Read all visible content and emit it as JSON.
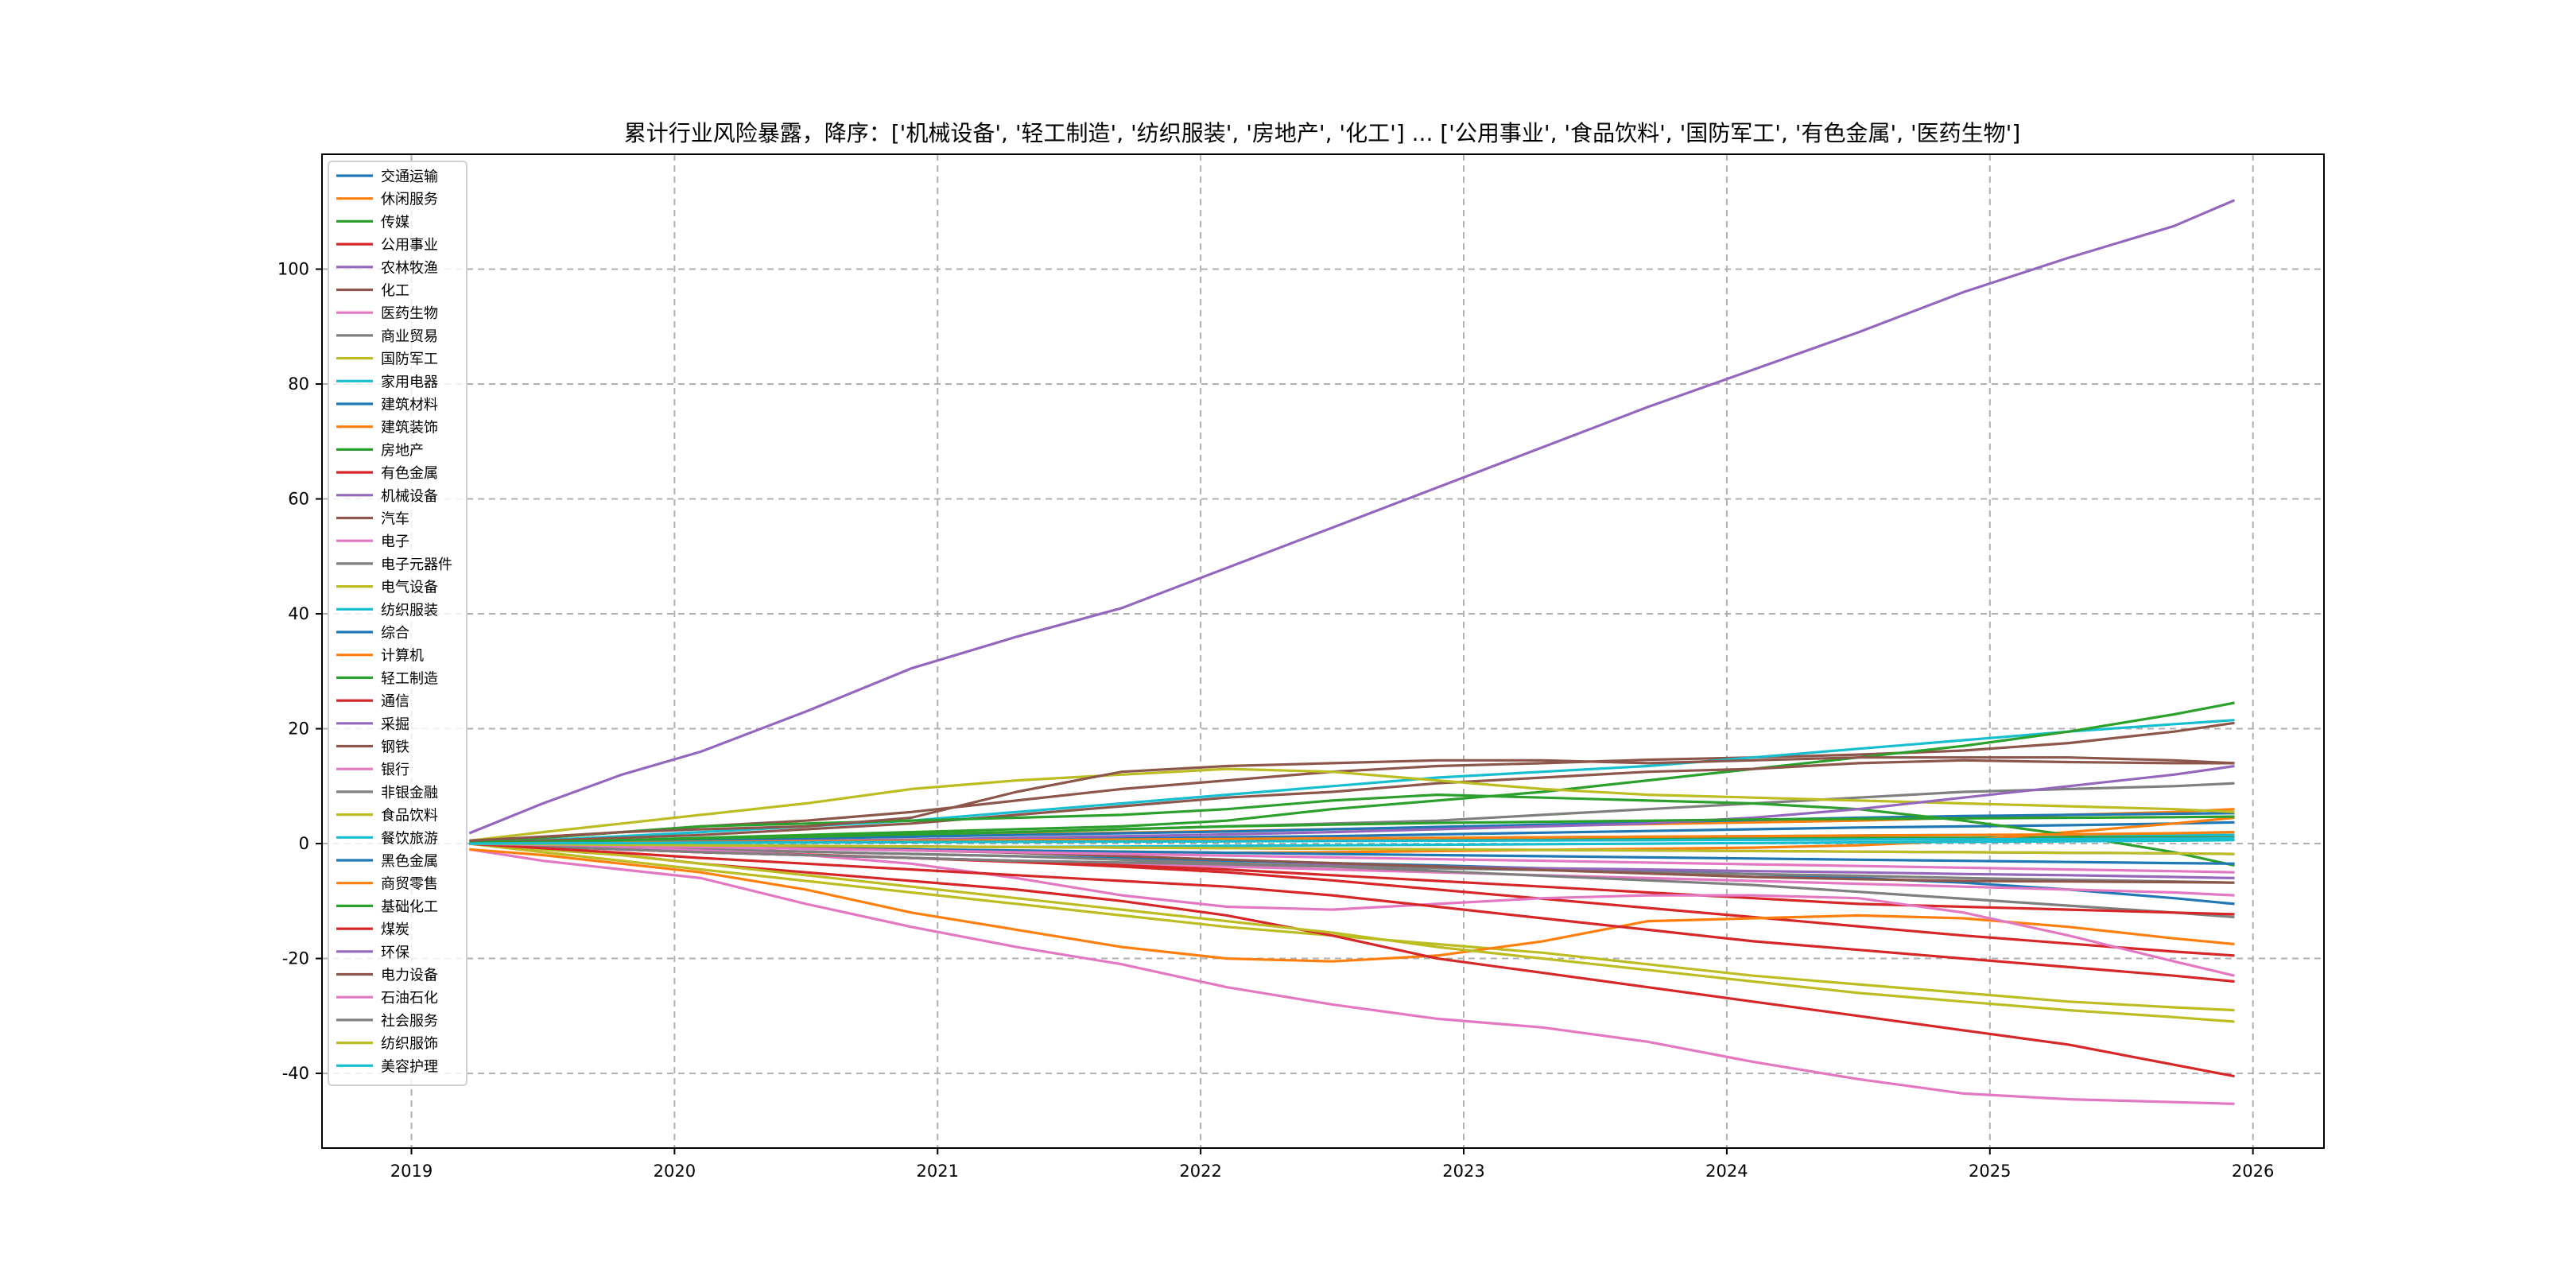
{
  "chart_data": {
    "type": "line",
    "title": "累计行业风险暴露，降序：['机械设备', '轻工制造', '纺织服装', '房地产', '化工'] ... ['公用事业', '食品饮料', '国防军工', '有色金属', '医药生物']",
    "xlabel": "",
    "ylabel": "",
    "x_ticks": [
      "2019",
      "2020",
      "2021",
      "2022",
      "2023",
      "2024",
      "2025",
      "2026"
    ],
    "y_ticks": [
      -40,
      -20,
      0,
      20,
      40,
      60,
      80,
      100
    ],
    "xlim": [
      2018.66,
      2026.27
    ],
    "ylim": [
      -53,
      120
    ],
    "grid": true,
    "legend_position": "upper-left",
    "x": [
      2019.22,
      2019.5,
      2019.8,
      2020.1,
      2020.5,
      2020.9,
      2021.3,
      2021.7,
      2022.1,
      2022.5,
      2022.9,
      2023.3,
      2023.7,
      2024.1,
      2024.5,
      2024.9,
      2025.3,
      2025.7,
      2025.93
    ],
    "series": [
      {
        "name": "交通运输",
        "color": "#1f77b4",
        "values": [
          0,
          -0.3,
          -0.6,
          -1,
          -1.4,
          -1.8,
          -2.2,
          -2.6,
          -3,
          -3.4,
          -3.8,
          -4.3,
          -4.8,
          -5.3,
          -6,
          -6.8,
          -8,
          -9.5,
          -10.5
        ]
      },
      {
        "name": "休闲服务",
        "color": "#ff7f0e",
        "values": [
          0,
          0.2,
          0.4,
          0.7,
          1,
          1.3,
          1.6,
          1.9,
          2.2,
          2.5,
          2.8,
          3.1,
          3.4,
          3.7,
          4,
          4.5,
          5,
          5.5,
          6
        ]
      },
      {
        "name": "传媒",
        "color": "#2ca02c",
        "values": [
          0,
          0.1,
          0.2,
          0.3,
          0.4,
          0.5,
          0.5,
          0.6,
          0.6,
          0.7,
          0.7,
          0.8,
          0.8,
          0.9,
          1,
          1,
          1.1,
          1.2,
          1.3
        ]
      },
      {
        "name": "公用事业",
        "color": "#d62728",
        "values": [
          0,
          -0.4,
          -0.8,
          -1.3,
          -1.9,
          -2.5,
          -3.2,
          -4,
          -5,
          -6.4,
          -8,
          -9.6,
          -11.2,
          -12.8,
          -14.4,
          -16,
          -17.4,
          -18.8,
          -19.5
        ]
      },
      {
        "name": "农林牧渔",
        "color": "#9467bd",
        "values": [
          0,
          -0.5,
          -1,
          -1.5,
          -2,
          -2.5,
          -3,
          -3.3,
          -3.5,
          -3.8,
          -4,
          -4.3,
          -4.5,
          -4.8,
          -5,
          -5.3,
          -5.5,
          -5.8,
          -6
        ]
      },
      {
        "name": "化工",
        "color": "#8c564b",
        "values": [
          0,
          1,
          2,
          3,
          4,
          5.5,
          7.5,
          9.5,
          11,
          12.5,
          13.5,
          14,
          14.6,
          15,
          15.5,
          16.2,
          17.5,
          19.5,
          21
        ]
      },
      {
        "name": "医药生物",
        "color": "#e377c2",
        "values": [
          -1,
          -3,
          -4.5,
          -6,
          -10.5,
          -14.5,
          -18,
          -21,
          -25,
          -28,
          -30.5,
          -32,
          -34.5,
          -38,
          -41,
          -43.5,
          -44.5,
          -45,
          -45.3
        ]
      },
      {
        "name": "商业贸易",
        "color": "#7f7f7f",
        "values": [
          0,
          0.2,
          0.5,
          0.8,
          1.2,
          1.6,
          2,
          2.5,
          3,
          3.5,
          4,
          5,
          6,
          7,
          8,
          9,
          9.5,
          10,
          10.5
        ]
      },
      {
        "name": "国防军工",
        "color": "#bcbd22",
        "values": [
          0,
          -1.5,
          -3,
          -4.5,
          -6.5,
          -8.5,
          -10.5,
          -12.5,
          -14.5,
          -16,
          -17.5,
          -19,
          -21,
          -23,
          -24.5,
          -26,
          -27.5,
          -28.5,
          -29
        ]
      },
      {
        "name": "家用电器",
        "color": "#17becf",
        "values": [
          0,
          0.6,
          1.3,
          2,
          3,
          4,
          5.5,
          7,
          8.5,
          10,
          11.5,
          12.5,
          13.5,
          15,
          16.5,
          18,
          19.5,
          20.8,
          21.5
        ]
      },
      {
        "name": "建筑材料",
        "color": "#1f77b4",
        "values": [
          0,
          0.2,
          0.4,
          0.6,
          0.9,
          1.2,
          1.5,
          1.8,
          2.1,
          2.5,
          2.9,
          3.3,
          3.7,
          4.1,
          4.5,
          4.8,
          5,
          5.2,
          5.3
        ]
      },
      {
        "name": "建筑装饰",
        "color": "#ff7f0e",
        "values": [
          -1,
          -2,
          -3.5,
          -5,
          -8,
          -12,
          -15,
          -18,
          -20,
          -20.5,
          -19.5,
          -17,
          -13.5,
          -13,
          -12.5,
          -13,
          -14.5,
          -16.5,
          -17.5
        ]
      },
      {
        "name": "房地产",
        "color": "#2ca02c",
        "values": [
          0,
          0.3,
          0.6,
          1,
          1.5,
          2,
          2.5,
          3,
          4,
          6,
          7.5,
          9,
          11,
          13,
          15,
          17,
          19.5,
          22.5,
          24.5
        ]
      },
      {
        "name": "有色金属",
        "color": "#d62728",
        "values": [
          0,
          -1,
          -2,
          -3.5,
          -5,
          -6.5,
          -8,
          -10,
          -12.5,
          -16,
          -20,
          -22.5,
          -25,
          -27.5,
          -30,
          -32.5,
          -35,
          -38.5,
          -40.5
        ]
      },
      {
        "name": "机械设备",
        "color": "#9467bd",
        "values": [
          1.8,
          7,
          12,
          16,
          23,
          30.5,
          36,
          41,
          48,
          55,
          62,
          69,
          76,
          82.5,
          89,
          96,
          102,
          107.5,
          112
        ]
      },
      {
        "name": "汽车",
        "color": "#8c564b",
        "values": [
          0,
          0.5,
          1,
          1.5,
          2.5,
          3.5,
          5,
          6.5,
          8,
          9,
          10.5,
          11.5,
          12.5,
          13,
          14,
          14.5,
          14.2,
          14,
          14
        ]
      },
      {
        "name": "电子",
        "color": "#e377c2",
        "values": [
          0,
          -0.5,
          -1,
          -1.5,
          -2,
          -2.5,
          -3,
          -3.5,
          -4,
          -4.5,
          -5,
          -5.5,
          -6,
          -6.5,
          -7,
          -7.5,
          -8,
          -8.5,
          -9
        ]
      },
      {
        "name": "电子元器件",
        "color": "#7f7f7f",
        "values": [
          0,
          -0.3,
          -0.6,
          -1,
          -1.4,
          -1.8,
          -2.2,
          -2.8,
          -3.4,
          -4,
          -4.8,
          -5.6,
          -6.4,
          -7.2,
          -8.4,
          -9.6,
          -10.8,
          -12,
          -12.8
        ]
      },
      {
        "name": "电气设备",
        "color": "#bcbd22",
        "values": [
          0.5,
          2,
          3.5,
          5,
          7,
          9.5,
          11,
          12,
          13,
          12.5,
          11,
          9.5,
          8.5,
          8,
          7.5,
          7,
          6.5,
          6,
          5.5
        ]
      },
      {
        "name": "纺织服装",
        "color": "#17becf",
        "values": [
          0,
          0.1,
          0.2,
          0.3,
          0.4,
          0.5,
          0.6,
          0.7,
          0.8,
          0.9,
          1,
          1.1,
          1.2,
          1.3,
          1.4,
          1.5,
          1.5,
          1.5,
          1.5
        ]
      },
      {
        "name": "综合",
        "color": "#1f77b4",
        "values": [
          0,
          0.1,
          0.2,
          0.3,
          0.4,
          0.5,
          0.7,
          0.9,
          1.1,
          1.3,
          1.6,
          1.9,
          2.2,
          2.5,
          2.8,
          3,
          3.2,
          3.5,
          3.7
        ]
      },
      {
        "name": "计算机",
        "color": "#ff7f0e",
        "values": [
          0,
          -0.2,
          -0.4,
          -0.6,
          -0.8,
          -1,
          -1.2,
          -1.4,
          -1.6,
          -1.5,
          -1.3,
          -1.1,
          -0.9,
          -0.7,
          -0.3,
          0.5,
          2,
          3.5,
          4.5
        ]
      },
      {
        "name": "轻工制造",
        "color": "#2ca02c",
        "values": [
          0.3,
          1,
          2,
          3,
          3.5,
          4,
          4.5,
          5,
          6,
          7.5,
          8.5,
          8,
          7.5,
          7,
          6,
          4,
          1.5,
          -1.5,
          -3.8
        ]
      },
      {
        "name": "通信",
        "color": "#d62728",
        "values": [
          0,
          -0.5,
          -1,
          -1.5,
          -2,
          -2.5,
          -3,
          -3.8,
          -4.5,
          -5.5,
          -6.5,
          -7.5,
          -8.5,
          -9.5,
          -10.5,
          -11,
          -11.5,
          -12,
          -12.3
        ]
      },
      {
        "name": "采掘",
        "color": "#9467bd",
        "values": [
          0,
          0.1,
          0.2,
          0.3,
          0.5,
          0.7,
          1,
          1.3,
          1.6,
          2,
          2.5,
          3,
          3.5,
          4.5,
          6,
          8,
          10,
          12,
          13.5
        ]
      },
      {
        "name": "钢铁",
        "color": "#8c564b",
        "values": [
          0.5,
          1.2,
          2,
          2.5,
          3,
          4.5,
          9,
          12.5,
          13.5,
          14,
          14.5,
          14.5,
          14,
          14.5,
          15,
          15,
          15,
          14.5,
          14
        ]
      },
      {
        "name": "银行",
        "color": "#e377c2",
        "values": [
          0,
          -0.3,
          -0.7,
          -1.2,
          -2,
          -3.5,
          -6,
          -9,
          -11,
          -11.5,
          -10.5,
          -9.5,
          -9,
          -9,
          -9.5,
          -12,
          -16,
          -20.5,
          -23
        ]
      },
      {
        "name": "非银金融",
        "color": "#7f7f7f",
        "values": [
          0,
          -0.5,
          -1,
          -1.5,
          -2,
          -2.5,
          -3,
          -3.3,
          -3.6,
          -4,
          -4.3,
          -4.6,
          -5,
          -5.3,
          -5.6,
          -6,
          -6.3,
          -6.6,
          -6.8
        ]
      },
      {
        "name": "食品饮料",
        "color": "#bcbd22",
        "values": [
          0,
          -1,
          -2,
          -3.5,
          -5.5,
          -7.5,
          -9.5,
          -11.5,
          -13.5,
          -15.5,
          -18,
          -20,
          -22,
          -24,
          -26,
          -27.5,
          -29,
          -30.2,
          -31
        ]
      },
      {
        "name": "餐饮旅游",
        "color": "#17becf",
        "values": [
          0,
          -0.1,
          -0.2,
          -0.3,
          -0.4,
          -0.5,
          -0.6,
          -0.5,
          -0.4,
          -0.3,
          -0.2,
          -0.1,
          0,
          0.1,
          0.2,
          0.3,
          0.4,
          0.5,
          0.6
        ]
      },
      {
        "name": "黑色金属",
        "color": "#1f77b4",
        "values": [
          0,
          -0.2,
          -0.4,
          -0.6,
          -0.8,
          -1,
          -1.2,
          -1.4,
          -1.6,
          -1.8,
          -2,
          -2.2,
          -2.4,
          -2.6,
          -2.8,
          -3,
          -3.2,
          -3.4,
          -3.5
        ]
      },
      {
        "name": "商贸零售",
        "color": "#ff7f0e",
        "values": [
          0,
          0.1,
          0.2,
          0.3,
          0.4,
          0.5,
          0.6,
          0.7,
          0.8,
          0.9,
          1,
          1.1,
          1.2,
          1.3,
          1.4,
          1.5,
          1.6,
          1.8,
          2
        ]
      },
      {
        "name": "基础化工",
        "color": "#2ca02c",
        "values": [
          0,
          0.3,
          0.6,
          0.9,
          1.2,
          1.6,
          2,
          2.5,
          3,
          3.3,
          3.6,
          3.8,
          4,
          4.2,
          4.3,
          4.4,
          4.5,
          4.6,
          4.7
        ]
      },
      {
        "name": "煤炭",
        "color": "#d62728",
        "values": [
          0,
          -0.8,
          -1.6,
          -2.5,
          -3.5,
          -4.5,
          -5.5,
          -6.5,
          -7.5,
          -9,
          -11,
          -13,
          -15,
          -17,
          -18.5,
          -20,
          -21.5,
          -23,
          -24
        ]
      },
      {
        "name": "环保",
        "color": "#9467bd",
        "values": [
          0,
          -0.1,
          -0.2,
          -0.3,
          -0.4,
          -0.5,
          -0.6,
          -0.7,
          -0.8,
          -0.9,
          -1,
          -1.1,
          -1.2,
          -1.3,
          -1.4,
          -1.5,
          -1.6,
          -1.7,
          -1.8
        ]
      },
      {
        "name": "电力设备",
        "color": "#8c564b",
        "values": [
          0,
          -0.2,
          -0.4,
          -0.6,
          -0.8,
          -1.2,
          -1.6,
          -2.2,
          -2.8,
          -3.4,
          -4,
          -4.6,
          -5.2,
          -5.8,
          -6.2,
          -6.5,
          -6.6,
          -6.7,
          -6.8
        ]
      },
      {
        "name": "石油石化",
        "color": "#e377c2",
        "values": [
          0,
          -0.2,
          -0.4,
          -0.6,
          -0.9,
          -1.2,
          -1.5,
          -1.8,
          -2.1,
          -2.4,
          -2.7,
          -3,
          -3.3,
          -3.6,
          -3.9,
          -4.2,
          -4.5,
          -4.8,
          -5
        ]
      },
      {
        "name": "社会服务",
        "color": "#7f7f7f",
        "values": [
          0,
          0.1,
          0.1,
          0.2,
          0.2,
          0.3,
          0.3,
          0.4,
          0.4,
          0.5,
          0.5,
          0.6,
          0.6,
          0.7,
          0.7,
          0.8,
          0.8,
          0.9,
          1
        ]
      },
      {
        "name": "纺织服饰",
        "color": "#bcbd22",
        "values": [
          0,
          -0.1,
          -0.2,
          -0.3,
          -0.4,
          -0.5,
          -0.6,
          -0.7,
          -0.8,
          -0.9,
          -1,
          -1.1,
          -1.2,
          -1.3,
          -1.4,
          -1.5,
          -1.6,
          -1.7,
          -1.8
        ]
      },
      {
        "name": "美容护理",
        "color": "#17becf",
        "values": [
          0,
          0.05,
          0.1,
          0.15,
          0.2,
          0.25,
          0.3,
          0.35,
          0.4,
          0.45,
          0.5,
          0.55,
          0.6,
          0.65,
          0.7,
          0.75,
          0.8,
          0.85,
          0.9
        ]
      }
    ]
  }
}
